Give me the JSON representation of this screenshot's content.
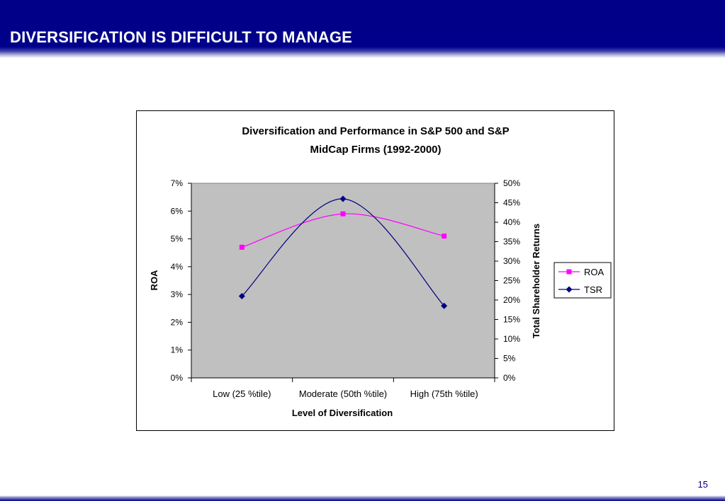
{
  "slide": {
    "title": "DIVERSIFICATION IS DIFFICULT TO MANAGE",
    "page_number": "15"
  },
  "colors": {
    "header": "#000088",
    "plot_area": "#c0c0c0",
    "roa": "#ff00ff",
    "tsr": "#000080"
  },
  "chart_data": {
    "type": "line",
    "title_lines": [
      "Diversification and Performance in S&P 500 and S&P",
      "MidCap Firms (1992-2000)"
    ],
    "xlabel": "Level of Diversification",
    "ylabel": "ROA",
    "y2label": "Total Shareholder Returns",
    "categories": [
      "Low (25 %tile)",
      "Moderate (50th %tile)",
      "High (75th %tile)"
    ],
    "series": [
      {
        "name": "ROA",
        "axis": "left",
        "color": "#ff00ff",
        "marker": "square",
        "values": [
          0.047,
          0.059,
          0.051
        ]
      },
      {
        "name": "TSR",
        "axis": "right",
        "color": "#000080",
        "marker": "diamond",
        "values": [
          0.21,
          0.46,
          0.185
        ]
      }
    ],
    "ylim": [
      0,
      0.07
    ],
    "y2lim": [
      0,
      0.5
    ],
    "yticks": [
      "0%",
      "1%",
      "2%",
      "3%",
      "4%",
      "5%",
      "6%",
      "7%"
    ],
    "y2ticks": [
      "0%",
      "5%",
      "10%",
      "15%",
      "20%",
      "25%",
      "30%",
      "35%",
      "40%",
      "45%",
      "50%"
    ],
    "smoothed": true,
    "grid": false,
    "legend_position": "right"
  }
}
